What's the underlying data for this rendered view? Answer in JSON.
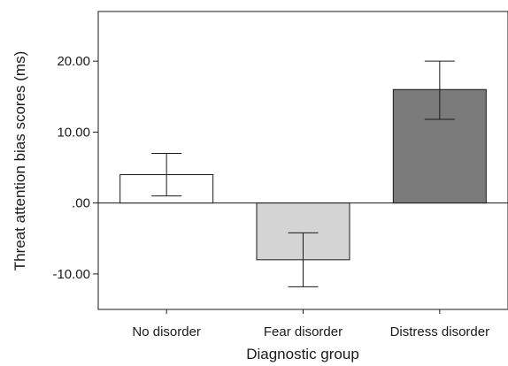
{
  "chart_data": {
    "type": "bar",
    "categories": [
      "No disorder",
      "Fear disorder",
      "Distress disorder"
    ],
    "values": [
      4.0,
      -8.0,
      16.0
    ],
    "error_bars": [
      {
        "low": 1.0,
        "high": 7.0
      },
      {
        "low": -11.8,
        "high": -4.2
      },
      {
        "low": 11.8,
        "high": 20.0
      }
    ],
    "bar_colors": [
      "#ffffff",
      "#d4d4d4",
      "#7a7a7a"
    ],
    "xlabel": "Diagnostic group",
    "ylabel": "Threat attention bias scores (ms)",
    "ylim": [
      -15,
      27
    ],
    "yticks": [
      -10,
      0,
      10,
      20
    ],
    "ytick_labels": [
      "-10.00",
      ".00",
      "10.00",
      "20.00"
    ],
    "grid": false,
    "zero_line": true
  }
}
